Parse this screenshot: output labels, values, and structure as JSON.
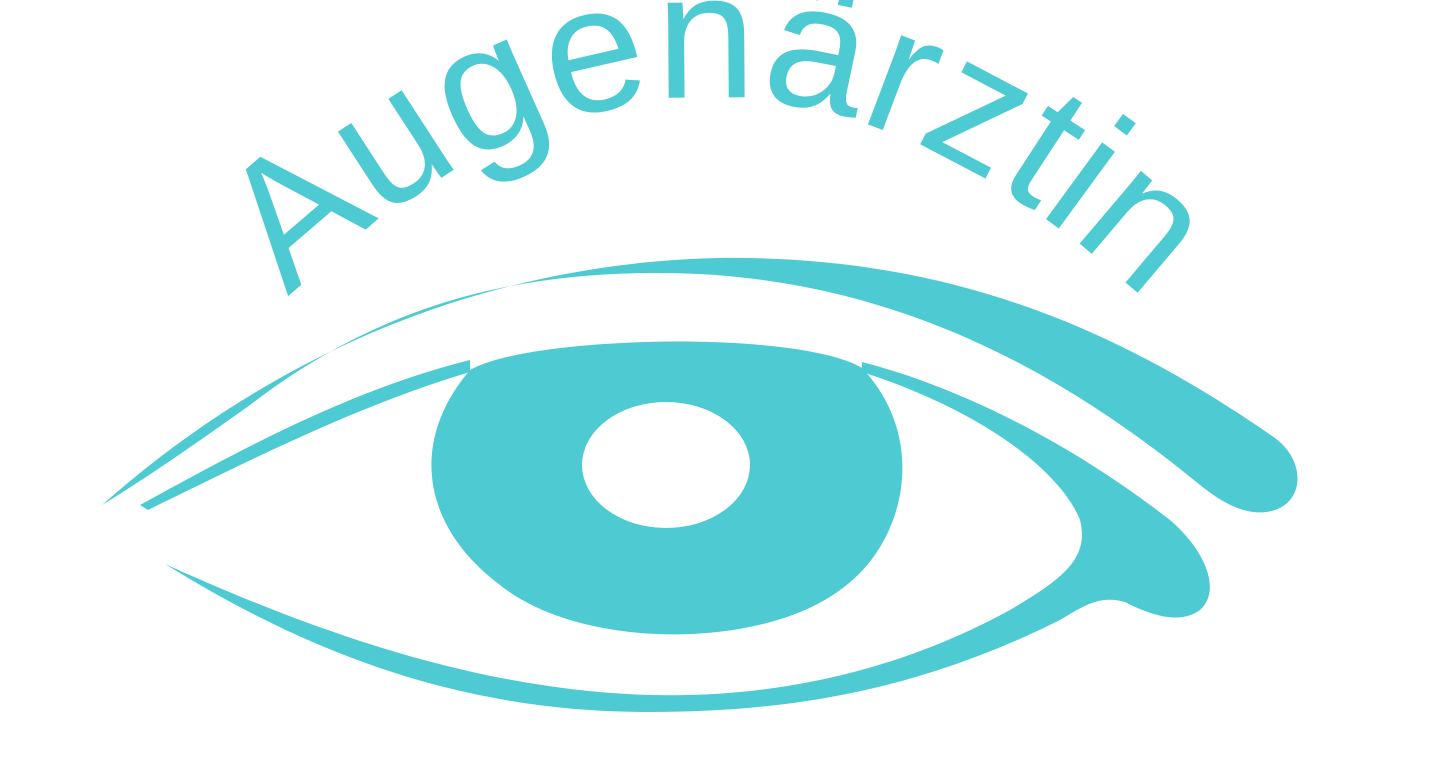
{
  "logo": {
    "wordmark": "Augenärztin",
    "color": "#4ECBD2",
    "background": "#FFFFFF",
    "icon": "eye-icon"
  }
}
